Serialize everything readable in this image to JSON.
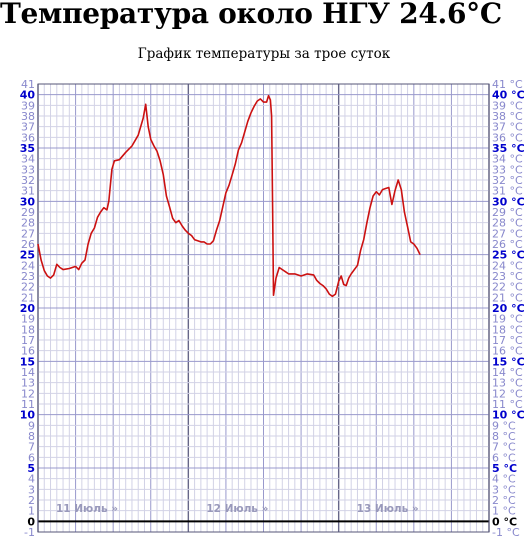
{
  "header": {
    "title": "Температура около НГУ 24.6°C",
    "subtitle": "График температуры за трое суток"
  },
  "chart_data": {
    "type": "line",
    "title": "Температура около НГУ 24.6°C",
    "subtitle": "График температуры за трое суток",
    "xlabel": "",
    "ylabel": "",
    "ylim": [
      -1,
      41
    ],
    "x_unit": "hours",
    "xlim": [
      0,
      72
    ],
    "grid": true,
    "tick_unit_label": "°C",
    "day_labels": [
      {
        "text": "11 Июль »",
        "x": 0
      },
      {
        "text": "12 Июль »",
        "x": 24
      },
      {
        "text": "13 Июль »",
        "x": 48
      }
    ],
    "colors": {
      "line": "#cc1111",
      "tick_major": "#0000cc",
      "tick_minor": "#8888cc",
      "day_label": "#9999bb",
      "grid_major": "#9999cc",
      "grid_minor": "#d2d2e6"
    },
    "series": [
      {
        "values": [
          [
            0,
            26
          ],
          [
            0.5,
            24.5
          ],
          [
            1,
            23.5
          ],
          [
            1.5,
            23
          ],
          [
            2,
            22.8
          ],
          [
            2.5,
            23.1
          ],
          [
            3,
            24.1
          ],
          [
            3.5,
            23.8
          ],
          [
            4,
            23.6
          ],
          [
            5,
            23.7
          ],
          [
            6,
            23.9
          ],
          [
            6.5,
            23.6
          ],
          [
            7,
            24.2
          ],
          [
            7.5,
            24.5
          ],
          [
            8,
            26
          ],
          [
            8.5,
            27
          ],
          [
            9,
            27.5
          ],
          [
            9.5,
            28.5
          ],
          [
            10,
            29
          ],
          [
            10.5,
            29.4
          ],
          [
            11,
            29.2
          ],
          [
            11.3,
            30
          ],
          [
            11.8,
            33
          ],
          [
            12.2,
            33.8
          ],
          [
            13,
            33.9
          ],
          [
            14,
            34.6
          ],
          [
            15,
            35.2
          ],
          [
            16,
            36.2
          ],
          [
            16.8,
            37.8
          ],
          [
            17.2,
            39.1
          ],
          [
            17.6,
            37
          ],
          [
            18,
            35.8
          ],
          [
            18.5,
            35.2
          ],
          [
            19,
            34.7
          ],
          [
            19.5,
            33.8
          ],
          [
            20,
            32.5
          ],
          [
            20.5,
            30.5
          ],
          [
            21,
            29.5
          ],
          [
            21.5,
            28.4
          ],
          [
            22,
            28
          ],
          [
            22.5,
            28.2
          ],
          [
            23,
            27.7
          ],
          [
            23.5,
            27.3
          ],
          [
            24,
            27
          ],
          [
            24.5,
            26.8
          ],
          [
            25,
            26.4
          ],
          [
            25.5,
            26.3
          ],
          [
            26,
            26.2
          ],
          [
            26.5,
            26.2
          ],
          [
            27,
            26
          ],
          [
            27.5,
            26
          ],
          [
            28,
            26.3
          ],
          [
            28.5,
            27.3
          ],
          [
            29,
            28.2
          ],
          [
            29.5,
            29.5
          ],
          [
            30,
            30.8
          ],
          [
            30.5,
            31.5
          ],
          [
            31,
            32.5
          ],
          [
            31.5,
            33.5
          ],
          [
            32,
            34.8
          ],
          [
            32.5,
            35.5
          ],
          [
            33,
            36.5
          ],
          [
            33.5,
            37.5
          ],
          [
            34,
            38.3
          ],
          [
            34.5,
            38.9
          ],
          [
            35,
            39.4
          ],
          [
            35.5,
            39.6
          ],
          [
            36,
            39.3
          ],
          [
            36.5,
            39.3
          ],
          [
            36.8,
            39.9
          ],
          [
            37.1,
            39.5
          ],
          [
            37.3,
            38
          ],
          [
            37.45,
            29.5
          ],
          [
            37.6,
            21.2
          ],
          [
            38,
            22.8
          ],
          [
            38.5,
            23.8
          ],
          [
            39,
            23.6
          ],
          [
            39.5,
            23.4
          ],
          [
            40,
            23.2
          ],
          [
            41,
            23.2
          ],
          [
            42,
            23
          ],
          [
            43,
            23.2
          ],
          [
            44,
            23.1
          ],
          [
            44.5,
            22.6
          ],
          [
            45,
            22.3
          ],
          [
            45.5,
            22.1
          ],
          [
            46,
            21.8
          ],
          [
            46.5,
            21.3
          ],
          [
            47,
            21.1
          ],
          [
            47.5,
            21.3
          ],
          [
            48,
            22.5
          ],
          [
            48.4,
            23
          ],
          [
            48.8,
            22.2
          ],
          [
            49.2,
            22.1
          ],
          [
            49.6,
            22.8
          ],
          [
            50,
            23.2
          ],
          [
            51,
            24
          ],
          [
            51.5,
            25.4
          ],
          [
            52,
            26.4
          ],
          [
            52.5,
            28
          ],
          [
            53,
            29.4
          ],
          [
            53.5,
            30.5
          ],
          [
            54,
            30.9
          ],
          [
            54.5,
            30.6
          ],
          [
            55,
            31.1
          ],
          [
            55.5,
            31.2
          ],
          [
            56,
            31.3
          ],
          [
            56.5,
            29.7
          ],
          [
            57,
            31
          ],
          [
            57.5,
            32
          ],
          [
            58,
            31.1
          ],
          [
            58.5,
            29
          ],
          [
            59,
            27.6
          ],
          [
            59.5,
            26.2
          ],
          [
            60,
            26
          ],
          [
            60.5,
            25.6
          ],
          [
            61,
            25
          ]
        ]
      }
    ]
  }
}
